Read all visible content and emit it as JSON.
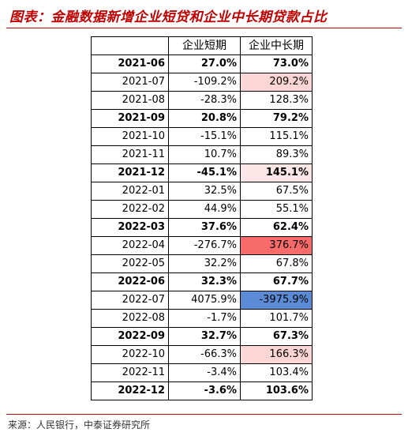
{
  "title": "图表：金融数据新增企业短贷和企业中长期贷款占比",
  "source": "来源：人民银行，中泰证券研究所",
  "table": {
    "headers": [
      "",
      "企业短期",
      "企业中长期"
    ],
    "rows": [
      {
        "period": "2021-06",
        "short": "27.0%",
        "long": "73.0%",
        "highlight": true,
        "heat": ""
      },
      {
        "period": "2021-07",
        "short": "-109.2%",
        "long": "209.2%",
        "highlight": false,
        "heat": "light"
      },
      {
        "period": "2021-08",
        "short": "-28.3%",
        "long": "128.3%",
        "highlight": false,
        "heat": ""
      },
      {
        "period": "2021-09",
        "short": "20.8%",
        "long": "79.2%",
        "highlight": true,
        "heat": ""
      },
      {
        "period": "2021-10",
        "short": "-15.1%",
        "long": "115.1%",
        "highlight": false,
        "heat": ""
      },
      {
        "period": "2021-11",
        "short": "10.7%",
        "long": "89.3%",
        "highlight": false,
        "heat": ""
      },
      {
        "period": "2021-12",
        "short": "-45.1%",
        "long": "145.1%",
        "highlight": true,
        "heat": "lighter"
      },
      {
        "period": "2022-01",
        "short": "32.5%",
        "long": "67.5%",
        "highlight": false,
        "heat": ""
      },
      {
        "period": "2022-02",
        "short": "44.9%",
        "long": "55.1%",
        "highlight": false,
        "heat": ""
      },
      {
        "period": "2022-03",
        "short": "37.6%",
        "long": "62.4%",
        "highlight": true,
        "heat": ""
      },
      {
        "period": "2022-04",
        "short": "-276.7%",
        "long": "376.7%",
        "highlight": false,
        "heat": "strong"
      },
      {
        "period": "2022-05",
        "short": "32.2%",
        "long": "67.8%",
        "highlight": false,
        "heat": ""
      },
      {
        "period": "2022-06",
        "short": "32.3%",
        "long": "67.7%",
        "highlight": true,
        "heat": ""
      },
      {
        "period": "2022-07",
        "short": "4075.9%",
        "long": "-3975.9%",
        "highlight": false,
        "heat": "blue"
      },
      {
        "period": "2022-08",
        "short": "-1.7%",
        "long": "101.7%",
        "highlight": false,
        "heat": ""
      },
      {
        "period": "2022-09",
        "short": "32.7%",
        "long": "67.3%",
        "highlight": true,
        "heat": ""
      },
      {
        "period": "2022-10",
        "short": "-66.3%",
        "long": "166.3%",
        "highlight": false,
        "heat": "light"
      },
      {
        "period": "2022-11",
        "short": "-3.4%",
        "long": "103.4%",
        "highlight": false,
        "heat": ""
      },
      {
        "period": "2022-12",
        "short": "-3.6%",
        "long": "103.6%",
        "highlight": true,
        "heat": ""
      }
    ]
  }
}
